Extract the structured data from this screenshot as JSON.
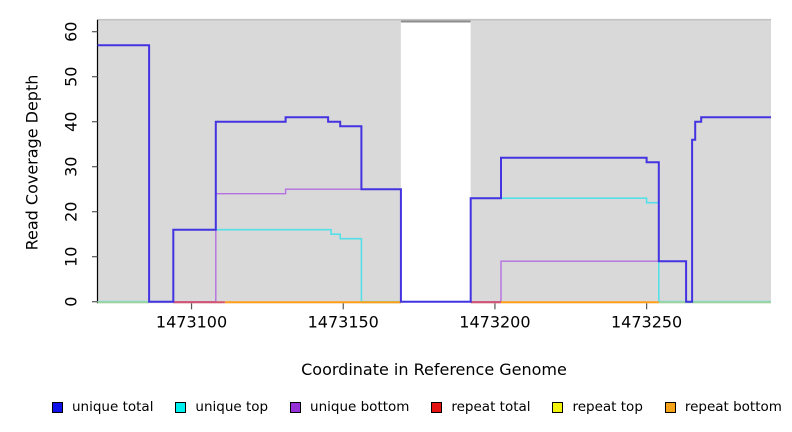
{
  "axes": {
    "x": {
      "label": "Coordinate in Reference Genome",
      "ticks": [
        1473100,
        1473150,
        1473200,
        1473250
      ],
      "lim": [
        1473069,
        1473291
      ]
    },
    "y": {
      "label": "Read Coverage Depth",
      "ticks": [
        0,
        10,
        20,
        30,
        40,
        50,
        60
      ],
      "lim": [
        0,
        62.7
      ]
    }
  },
  "chart_data": {
    "type": "line",
    "step_mode": "step-after",
    "title": "",
    "xlabel": "Coordinate in Reference Genome",
    "ylabel": "Read Coverage Depth",
    "xlim": [
      1473069,
      1473291
    ],
    "ylim": [
      0,
      62.7
    ],
    "grid": false,
    "background_regions": {
      "fill_segments": [
        [
          1473069,
          1473169
        ],
        [
          1473192,
          1473291
        ]
      ],
      "gap_segment": [
        1473169,
        1473192
      ],
      "fill_color": "#d9d9d9",
      "top_line_color": "#c4c4c4",
      "gap_top_line_color": "#8d8d8d"
    },
    "series": [
      {
        "name": "unique total",
        "color": "#4433e0",
        "width": 2,
        "points": [
          [
            1473069,
            57
          ],
          [
            1473086,
            0
          ],
          [
            1473094,
            16
          ],
          [
            1473108,
            40
          ],
          [
            1473131,
            41
          ],
          [
            1473145,
            40
          ],
          [
            1473149,
            39
          ],
          [
            1473156,
            25
          ],
          [
            1473169,
            0
          ],
          [
            1473192,
            23
          ],
          [
            1473202,
            32
          ],
          [
            1473250,
            31
          ],
          [
            1473254,
            9
          ],
          [
            1473263,
            0
          ],
          [
            1473265,
            36
          ],
          [
            1473266,
            40
          ],
          [
            1473268,
            41
          ]
        ]
      },
      {
        "name": "unique top",
        "color": "#55e0e8",
        "width": 1.6,
        "points": [
          [
            1473069,
            0
          ],
          [
            1473094,
            16
          ],
          [
            1473146,
            15
          ],
          [
            1473149,
            14
          ],
          [
            1473156,
            0
          ],
          [
            1473192,
            23
          ],
          [
            1473250,
            22
          ],
          [
            1473254,
            0
          ]
        ]
      },
      {
        "name": "unique bottom",
        "color": "#b46fe0",
        "width": 1.4,
        "points": [
          [
            1473069,
            0
          ],
          [
            1473108,
            24
          ],
          [
            1473131,
            25
          ],
          [
            1473169,
            0
          ],
          [
            1473202,
            9
          ],
          [
            1473263,
            0
          ]
        ]
      },
      {
        "name": "repeat total",
        "color": "#d4566e",
        "width": 2,
        "points": [
          [
            1473069,
            0
          ]
        ]
      },
      {
        "name": "repeat top",
        "color": "#f0f000",
        "width": 2,
        "points": [
          [
            1473069,
            0
          ]
        ]
      },
      {
        "name": "repeat bottom",
        "color": "#ff9e1a",
        "width": 2,
        "points": [
          [
            1473069,
            0
          ]
        ]
      }
    ],
    "zero_line_visible_segments": [
      {
        "color": "#9fd49f",
        "segments": [
          [
            1473069,
            1473086
          ],
          [
            1473156,
            1473169
          ],
          [
            1473254,
            1473291
          ]
        ]
      },
      {
        "color": "#d4566e",
        "segments": [
          [
            1473094,
            1473111
          ],
          [
            1473192,
            1473202
          ]
        ]
      },
      {
        "color": "#ff9e1a",
        "segments": [
          [
            1473111,
            1473169
          ],
          [
            1473202,
            1473254
          ]
        ]
      }
    ]
  },
  "legend": [
    {
      "label": "unique total",
      "color": "#1010e8"
    },
    {
      "label": "unique top",
      "color": "#00f0f0"
    },
    {
      "label": "unique bottom",
      "color": "#9531d6"
    },
    {
      "label": "repeat total",
      "color": "#e51212"
    },
    {
      "label": "repeat top",
      "color": "#f2f20a"
    },
    {
      "label": "repeat bottom",
      "color": "#f5a21b"
    }
  ],
  "colors": {
    "axis_line": "#000000",
    "tick_mark": "#555555",
    "tick_label": "#000000"
  }
}
